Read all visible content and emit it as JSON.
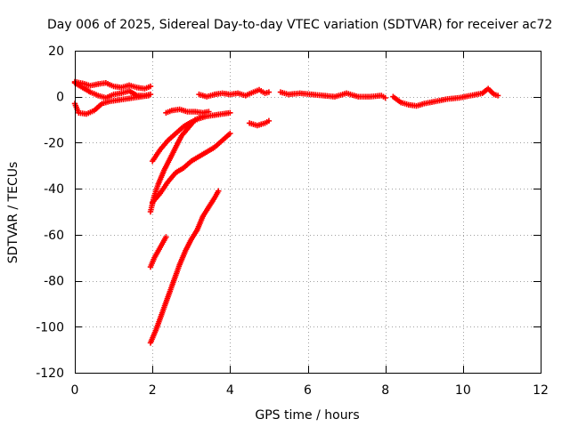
{
  "chart_data": {
    "type": "scatter",
    "title": "Day 006 of 2025, Sidereal Day-to-day VTEC variation (SDTVAR) for receiver ac72",
    "xlabel": "GPS time / hours",
    "ylabel": "SDTVAR / TECUs",
    "xlim": [
      0,
      12
    ],
    "ylim": [
      -120,
      20
    ],
    "xticks": [
      0,
      2,
      4,
      6,
      8,
      10,
      12
    ],
    "yticks": [
      -120,
      -100,
      -80,
      -60,
      -40,
      -20,
      0,
      20
    ],
    "xtick_labels": [
      "0",
      "2",
      "4",
      "6",
      "8",
      "10",
      "12"
    ],
    "ytick_labels": [
      "-120",
      "-100",
      "-80",
      "-60",
      "-40",
      "-20",
      "0",
      "20"
    ],
    "grid": true,
    "marker": "+",
    "color": "#ff0000",
    "series": [
      {
        "name": "arc-top-a",
        "points": [
          [
            0.0,
            6.5
          ],
          [
            0.2,
            5.8
          ],
          [
            0.4,
            4.8
          ],
          [
            0.6,
            5.5
          ],
          [
            0.8,
            6.0
          ],
          [
            1.0,
            4.5
          ],
          [
            1.2,
            4.0
          ],
          [
            1.4,
            5.0
          ],
          [
            1.6,
            4.0
          ],
          [
            1.8,
            3.5
          ],
          [
            1.95,
            4.5
          ]
        ]
      },
      {
        "name": "arc-top-b",
        "points": [
          [
            0.0,
            6.0
          ],
          [
            0.2,
            4.0
          ],
          [
            0.4,
            2.0
          ],
          [
            0.6,
            0.5
          ],
          [
            0.8,
            -0.5
          ],
          [
            1.0,
            1.0
          ],
          [
            1.2,
            1.5
          ],
          [
            1.4,
            2.5
          ],
          [
            1.6,
            0.5
          ],
          [
            1.8,
            0.5
          ],
          [
            1.95,
            1.0
          ]
        ]
      },
      {
        "name": "arc-top-c",
        "points": [
          [
            0.0,
            -3.0
          ],
          [
            0.1,
            -7.0
          ],
          [
            0.3,
            -7.5
          ],
          [
            0.5,
            -6.0
          ],
          [
            0.7,
            -3.0
          ],
          [
            0.9,
            -2.0
          ],
          [
            1.1,
            -1.5
          ],
          [
            1.3,
            -1.0
          ],
          [
            1.5,
            -0.5
          ],
          [
            1.7,
            0.0
          ],
          [
            1.9,
            0.5
          ]
        ]
      },
      {
        "name": "arc-mid-1",
        "points": [
          [
            2.35,
            -7.0
          ],
          [
            2.5,
            -6.0
          ],
          [
            2.7,
            -5.5
          ],
          [
            2.9,
            -6.5
          ],
          [
            3.1,
            -6.5
          ],
          [
            3.3,
            -7.0
          ],
          [
            3.45,
            -6.5
          ]
        ]
      },
      {
        "name": "arc-mid-2",
        "points": [
          [
            2.0,
            -28
          ],
          [
            2.2,
            -23
          ],
          [
            2.4,
            -19
          ],
          [
            2.6,
            -16
          ],
          [
            2.8,
            -13
          ],
          [
            3.0,
            -11
          ],
          [
            3.2,
            -9.5
          ],
          [
            3.4,
            -8.5
          ],
          [
            3.6,
            -8
          ],
          [
            3.8,
            -7.5
          ],
          [
            4.0,
            -7.0
          ]
        ]
      },
      {
        "name": "arc-mid-3",
        "points": [
          [
            1.95,
            -50
          ],
          [
            2.05,
            -43
          ],
          [
            2.15,
            -38
          ],
          [
            2.3,
            -32
          ],
          [
            2.45,
            -27
          ],
          [
            2.6,
            -22
          ],
          [
            2.75,
            -17
          ],
          [
            2.9,
            -14
          ],
          [
            3.1,
            -10
          ],
          [
            3.3,
            -8.5
          ]
        ]
      },
      {
        "name": "arc-mid-4",
        "points": [
          [
            2.0,
            -46
          ],
          [
            2.2,
            -42
          ],
          [
            2.4,
            -37
          ],
          [
            2.6,
            -33
          ],
          [
            2.8,
            -31
          ],
          [
            3.0,
            -28
          ],
          [
            3.2,
            -26
          ],
          [
            3.4,
            -24
          ],
          [
            3.6,
            -22
          ],
          [
            3.8,
            -19
          ],
          [
            4.0,
            -16
          ]
        ]
      },
      {
        "name": "arc-low-1",
        "points": [
          [
            1.95,
            -74
          ],
          [
            2.05,
            -70
          ],
          [
            2.15,
            -67
          ],
          [
            2.25,
            -64
          ],
          [
            2.35,
            -61
          ]
        ]
      },
      {
        "name": "arc-low-2",
        "points": [
          [
            1.95,
            -107
          ],
          [
            2.1,
            -101
          ],
          [
            2.25,
            -94
          ],
          [
            2.4,
            -87
          ],
          [
            2.55,
            -80
          ],
          [
            2.7,
            -73
          ],
          [
            2.85,
            -67
          ],
          [
            3.0,
            -62
          ],
          [
            3.15,
            -58
          ],
          [
            3.3,
            -52
          ],
          [
            3.45,
            -48
          ],
          [
            3.6,
            -44
          ],
          [
            3.7,
            -41
          ]
        ]
      },
      {
        "name": "arc-short",
        "points": [
          [
            4.5,
            -11.5
          ],
          [
            4.7,
            -12.5
          ],
          [
            4.9,
            -11.5
          ],
          [
            5.0,
            -10.5
          ]
        ]
      },
      {
        "name": "arc-day-1",
        "points": [
          [
            3.2,
            1.0
          ],
          [
            3.4,
            0.0
          ],
          [
            3.6,
            1.0
          ],
          [
            3.8,
            1.5
          ],
          [
            4.0,
            1.0
          ],
          [
            4.2,
            1.5
          ],
          [
            4.4,
            0.5
          ],
          [
            4.6,
            2.0
          ],
          [
            4.75,
            3.0
          ],
          [
            4.9,
            1.5
          ],
          [
            5.0,
            2.0
          ]
        ]
      },
      {
        "name": "arc-day-2",
        "points": [
          [
            5.3,
            2.0
          ],
          [
            5.5,
            1.0
          ],
          [
            5.8,
            1.5
          ],
          [
            6.1,
            1.0
          ],
          [
            6.4,
            0.5
          ],
          [
            6.7,
            0.0
          ],
          [
            7.0,
            1.5
          ],
          [
            7.3,
            0.0
          ],
          [
            7.6,
            0.0
          ],
          [
            7.9,
            0.5
          ],
          [
            8.0,
            -0.5
          ]
        ]
      },
      {
        "name": "arc-day-3",
        "points": [
          [
            8.2,
            0.0
          ],
          [
            8.4,
            -2.5
          ],
          [
            8.6,
            -3.5
          ],
          [
            8.8,
            -4.0
          ],
          [
            9.0,
            -3.0
          ],
          [
            9.3,
            -2.0
          ],
          [
            9.6,
            -1.0
          ],
          [
            9.9,
            -0.5
          ],
          [
            10.2,
            0.5
          ],
          [
            10.5,
            1.5
          ],
          [
            10.65,
            3.5
          ],
          [
            10.8,
            1.0
          ],
          [
            10.9,
            0.5
          ]
        ]
      }
    ]
  }
}
